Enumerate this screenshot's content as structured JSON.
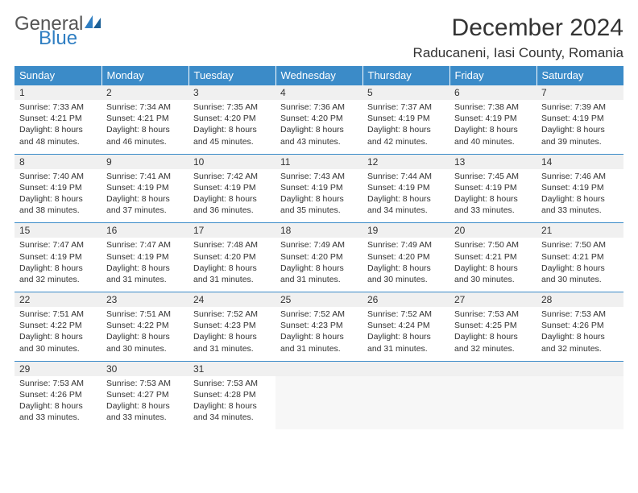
{
  "logo": {
    "general": "General",
    "blue": "Blue"
  },
  "title": "December 2024",
  "location": "Raducaneni, Iasi County, Romania",
  "colors": {
    "header_bg": "#3b8bc8",
    "header_text": "#ffffff",
    "daynum_bg": "#f0f0f0",
    "row_border": "#3b8bc8",
    "text": "#333333",
    "logo_gray": "#555555",
    "logo_blue": "#2f7ec2"
  },
  "day_headers": [
    "Sunday",
    "Monday",
    "Tuesday",
    "Wednesday",
    "Thursday",
    "Friday",
    "Saturday"
  ],
  "weeks": [
    [
      {
        "n": "1",
        "sr": "7:33 AM",
        "ss": "4:21 PM",
        "dl": "8 hours and 48 minutes."
      },
      {
        "n": "2",
        "sr": "7:34 AM",
        "ss": "4:21 PM",
        "dl": "8 hours and 46 minutes."
      },
      {
        "n": "3",
        "sr": "7:35 AM",
        "ss": "4:20 PM",
        "dl": "8 hours and 45 minutes."
      },
      {
        "n": "4",
        "sr": "7:36 AM",
        "ss": "4:20 PM",
        "dl": "8 hours and 43 minutes."
      },
      {
        "n": "5",
        "sr": "7:37 AM",
        "ss": "4:19 PM",
        "dl": "8 hours and 42 minutes."
      },
      {
        "n": "6",
        "sr": "7:38 AM",
        "ss": "4:19 PM",
        "dl": "8 hours and 40 minutes."
      },
      {
        "n": "7",
        "sr": "7:39 AM",
        "ss": "4:19 PM",
        "dl": "8 hours and 39 minutes."
      }
    ],
    [
      {
        "n": "8",
        "sr": "7:40 AM",
        "ss": "4:19 PM",
        "dl": "8 hours and 38 minutes."
      },
      {
        "n": "9",
        "sr": "7:41 AM",
        "ss": "4:19 PM",
        "dl": "8 hours and 37 minutes."
      },
      {
        "n": "10",
        "sr": "7:42 AM",
        "ss": "4:19 PM",
        "dl": "8 hours and 36 minutes."
      },
      {
        "n": "11",
        "sr": "7:43 AM",
        "ss": "4:19 PM",
        "dl": "8 hours and 35 minutes."
      },
      {
        "n": "12",
        "sr": "7:44 AM",
        "ss": "4:19 PM",
        "dl": "8 hours and 34 minutes."
      },
      {
        "n": "13",
        "sr": "7:45 AM",
        "ss": "4:19 PM",
        "dl": "8 hours and 33 minutes."
      },
      {
        "n": "14",
        "sr": "7:46 AM",
        "ss": "4:19 PM",
        "dl": "8 hours and 33 minutes."
      }
    ],
    [
      {
        "n": "15",
        "sr": "7:47 AM",
        "ss": "4:19 PM",
        "dl": "8 hours and 32 minutes."
      },
      {
        "n": "16",
        "sr": "7:47 AM",
        "ss": "4:19 PM",
        "dl": "8 hours and 31 minutes."
      },
      {
        "n": "17",
        "sr": "7:48 AM",
        "ss": "4:20 PM",
        "dl": "8 hours and 31 minutes."
      },
      {
        "n": "18",
        "sr": "7:49 AM",
        "ss": "4:20 PM",
        "dl": "8 hours and 31 minutes."
      },
      {
        "n": "19",
        "sr": "7:49 AM",
        "ss": "4:20 PM",
        "dl": "8 hours and 30 minutes."
      },
      {
        "n": "20",
        "sr": "7:50 AM",
        "ss": "4:21 PM",
        "dl": "8 hours and 30 minutes."
      },
      {
        "n": "21",
        "sr": "7:50 AM",
        "ss": "4:21 PM",
        "dl": "8 hours and 30 minutes."
      }
    ],
    [
      {
        "n": "22",
        "sr": "7:51 AM",
        "ss": "4:22 PM",
        "dl": "8 hours and 30 minutes."
      },
      {
        "n": "23",
        "sr": "7:51 AM",
        "ss": "4:22 PM",
        "dl": "8 hours and 30 minutes."
      },
      {
        "n": "24",
        "sr": "7:52 AM",
        "ss": "4:23 PM",
        "dl": "8 hours and 31 minutes."
      },
      {
        "n": "25",
        "sr": "7:52 AM",
        "ss": "4:23 PM",
        "dl": "8 hours and 31 minutes."
      },
      {
        "n": "26",
        "sr": "7:52 AM",
        "ss": "4:24 PM",
        "dl": "8 hours and 31 minutes."
      },
      {
        "n": "27",
        "sr": "7:53 AM",
        "ss": "4:25 PM",
        "dl": "8 hours and 32 minutes."
      },
      {
        "n": "28",
        "sr": "7:53 AM",
        "ss": "4:26 PM",
        "dl": "8 hours and 32 minutes."
      }
    ],
    [
      {
        "n": "29",
        "sr": "7:53 AM",
        "ss": "4:26 PM",
        "dl": "8 hours and 33 minutes."
      },
      {
        "n": "30",
        "sr": "7:53 AM",
        "ss": "4:27 PM",
        "dl": "8 hours and 33 minutes."
      },
      {
        "n": "31",
        "sr": "7:53 AM",
        "ss": "4:28 PM",
        "dl": "8 hours and 34 minutes."
      },
      null,
      null,
      null,
      null
    ]
  ],
  "labels": {
    "sunrise": "Sunrise:",
    "sunset": "Sunset:",
    "daylight": "Daylight:"
  }
}
